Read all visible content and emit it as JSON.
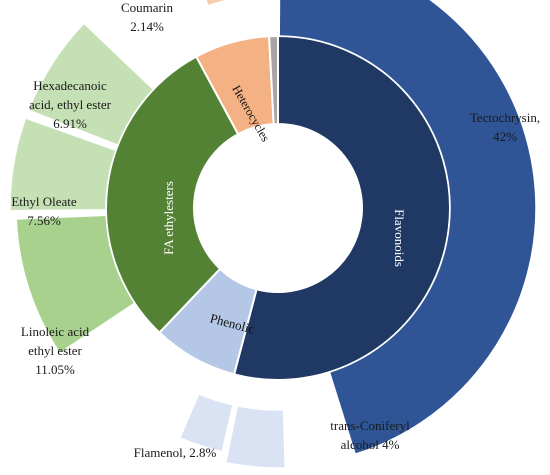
{
  "chart_data": {
    "type": "sunburst",
    "title": "",
    "inner_ring": [
      {
        "name": "Flavonoids",
        "value": 46.0,
        "color": "#1f3864",
        "label_color": "#ffffff"
      },
      {
        "name": "Phenolic",
        "value": 6.8,
        "color": "#b4c7e7",
        "label_color": "#111111"
      },
      {
        "name": "FA ethylesters",
        "value": 25.52,
        "color": "#548235",
        "label_color": "#ffffff"
      },
      {
        "name": "Heterocycles",
        "value": 6.0,
        "color": "#f4b183",
        "label_color": "#111111"
      },
      {
        "name": "",
        "value": 0.7,
        "color": "#a6a6a6",
        "label_color": "#111111"
      }
    ],
    "outer_ring": [
      {
        "label": "Tectochrysin,\n42%",
        "value": 42.0,
        "parent": "Flavonoids",
        "color": "#2f5597"
      },
      {
        "label": "trans-Coniferyl\nalcohol  4%",
        "value": 4.0,
        "parent": "Phenolic",
        "color": "#dae3f3"
      },
      {
        "label": "Flamenol, 2.8%",
        "value": 2.8,
        "parent": "Phenolic",
        "color": "#dae3f3"
      },
      {
        "label": "Linoleic acid\nethyl ester\n11.05%",
        "value": 11.05,
        "parent": "FA ethylesters",
        "color": "#a9d18e"
      },
      {
        "label": "Ethyl Oleate\n7.56%",
        "value": 7.56,
        "parent": "FA ethylesters",
        "color": "#c5e0b4"
      },
      {
        "label": "Hexadecanoic\nacid, ethyl ester\n6.91%",
        "value": 6.91,
        "parent": "FA ethylesters",
        "color": "#c5e0b4"
      },
      {
        "label": "Coumarin\n2.14%",
        "value": 2.14,
        "parent": "Heterocycles",
        "color": "#f8cbad"
      }
    ]
  }
}
